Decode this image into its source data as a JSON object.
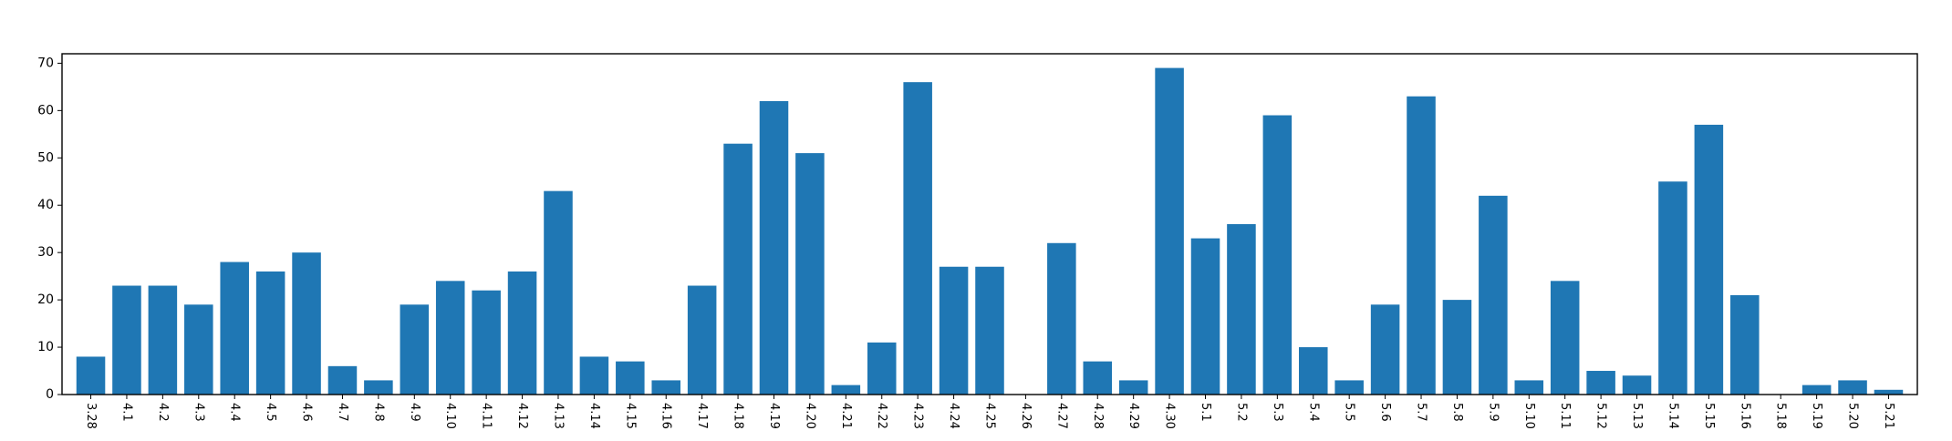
{
  "colors": {
    "bar": "#1f77b4",
    "axis": "#000000",
    "background": "#ffffff"
  },
  "chart_data": {
    "type": "bar",
    "title": "",
    "xlabel": "",
    "ylabel": "",
    "categories": [
      "3.28",
      "4.1",
      "4.2",
      "4.3",
      "4.4",
      "4.5",
      "4.6",
      "4.7",
      "4.8",
      "4.9",
      "4.10",
      "4.11",
      "4.12",
      "4.13",
      "4.14",
      "4.15",
      "4.16",
      "4.17",
      "4.18",
      "4.19",
      "4.20",
      "4.21",
      "4.22",
      "4.23",
      "4.24",
      "4.25",
      "4.26",
      "4.27",
      "4.28",
      "4.29",
      "4.30",
      "5.1",
      "5.2",
      "5.3",
      "5.4",
      "5.5",
      "5.6",
      "5.7",
      "5.8",
      "5.9",
      "5.10",
      "5.11",
      "5.12",
      "5.13",
      "5.14",
      "5.15",
      "5.16",
      "5.18",
      "5.19",
      "5.20",
      "5.21"
    ],
    "values": [
      8,
      23,
      23,
      19,
      28,
      26,
      30,
      6,
      3,
      19,
      24,
      22,
      26,
      43,
      8,
      7,
      3,
      23,
      53,
      62,
      51,
      2,
      11,
      66,
      27,
      27,
      0,
      32,
      7,
      3,
      69,
      33,
      36,
      59,
      10,
      3,
      19,
      63,
      20,
      42,
      3,
      24,
      5,
      4,
      45,
      57,
      21,
      0,
      2,
      3,
      1
    ],
    "ylim": [
      0,
      72
    ],
    "yticks": [
      0,
      10,
      20,
      30,
      40,
      50,
      60,
      70
    ],
    "grid": false,
    "legend": "none"
  }
}
